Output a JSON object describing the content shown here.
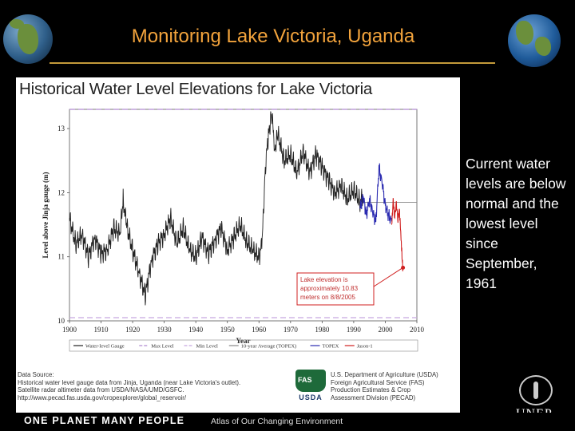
{
  "slide": {
    "title": "Monitoring Lake Victoria, Uganda",
    "side_text": "Current water levels are below normal and the lowest level since September, 1961"
  },
  "chart": {
    "title": "Historical Water Level Elevations for Lake Victoria",
    "annotation": [
      "Lake elevation is",
      "approximately 10.83",
      "meters on 8/8/2005"
    ],
    "source": {
      "heading": "Data Source:",
      "lines": [
        "Historical water level gauge data from Jinja, Uganda (near Lake Victoria's outlet).",
        "Satellite radar altimeter data from USDA/NASA/UMD/GSFC.",
        "http://www.pecad.fas.usda.gov/cropexplorer/global_reservoir/"
      ]
    },
    "agency": {
      "logo_text": "FAS",
      "logo_word": "USDA",
      "lines": [
        "U.S. Department of Agriculture (USDA)",
        "Foreign Agricultural Service (FAS)",
        "Production Estimates & Crop",
        "Assessment Division (PECAD)"
      ]
    }
  },
  "chart_data": {
    "type": "line",
    "title": "Historical Water Level Elevations for Lake Victoria",
    "xlabel": "Year",
    "ylabel": "Level above Jinja gauge (m)",
    "xlim": [
      1900,
      2010
    ],
    "ylim": [
      10,
      13.3
    ],
    "x_ticks": [
      1900,
      1910,
      1920,
      1930,
      1940,
      1950,
      1960,
      1970,
      1980,
      1990,
      2000,
      2010
    ],
    "y_ticks": [
      10,
      11,
      12,
      13
    ],
    "reference_lines": [
      {
        "name": "Max Level",
        "y": 13.3,
        "color": "#b08ad0",
        "dash": true
      },
      {
        "name": "Min Level",
        "y": 10.05,
        "color": "#c8a8e0",
        "dash": true
      },
      {
        "name": "10-year Average (TOPEX)",
        "y": 11.85,
        "color": "#888888",
        "dash": false
      }
    ],
    "series": [
      {
        "name": "Water-level Gauge",
        "color": "#222222",
        "x": [
          1900,
          1902,
          1904,
          1906,
          1908,
          1910,
          1912,
          1914,
          1916,
          1917,
          1918,
          1920,
          1922,
          1924,
          1926,
          1928,
          1930,
          1932,
          1934,
          1936,
          1938,
          1940,
          1942,
          1944,
          1946,
          1948,
          1950,
          1952,
          1954,
          1956,
          1958,
          1960,
          1961,
          1962,
          1963,
          1964,
          1965,
          1966,
          1968,
          1970,
          1972,
          1974,
          1976,
          1978,
          1980,
          1982,
          1984,
          1986,
          1988,
          1990,
          1992,
          1993
        ],
        "values": [
          11.6,
          11.2,
          11.35,
          11.0,
          11.3,
          11.05,
          11.1,
          11.45,
          11.35,
          11.9,
          11.5,
          11.1,
          10.75,
          10.4,
          10.95,
          11.2,
          11.35,
          11.6,
          11.2,
          11.45,
          11.1,
          11.0,
          11.3,
          11.05,
          11.25,
          11.45,
          11.1,
          11.3,
          11.5,
          11.25,
          11.1,
          11.0,
          11.2,
          12.4,
          12.9,
          13.25,
          12.7,
          12.9,
          12.5,
          12.6,
          12.3,
          12.65,
          12.3,
          12.6,
          12.4,
          12.2,
          12.0,
          12.1,
          11.9,
          12.05,
          11.85,
          11.95
        ]
      },
      {
        "name": "TOPEX",
        "color": "#2a2ab0",
        "x": [
          1992,
          1993,
          1994,
          1995,
          1996,
          1997,
          1998,
          1999,
          2000,
          2001,
          2002
        ],
        "values": [
          11.75,
          11.95,
          11.65,
          11.9,
          11.7,
          11.55,
          12.4,
          12.15,
          11.8,
          11.65,
          11.55
        ]
      },
      {
        "name": "Jason-1",
        "color": "#d02020",
        "x": [
          2002,
          2002.5,
          2003,
          2003.5,
          2004,
          2004.5,
          2005,
          2005.3,
          2005.6
        ],
        "values": [
          11.5,
          11.85,
          11.6,
          11.75,
          11.55,
          11.7,
          11.3,
          11.05,
          10.83
        ]
      }
    ],
    "legend": [
      "Water-level Gauge",
      "Max Level",
      "Min Level",
      "10-year Average (TOPEX)",
      "TOPEX",
      "Jason-1"
    ],
    "legend_colors": [
      "#222222",
      "#b08ad0",
      "#c8a8e0",
      "#888888",
      "#2a2ab0",
      "#d02020"
    ]
  },
  "footer": {
    "brand": "ONE PLANET MANY PEOPLE",
    "subtitle": "Atlas of Our Changing Environment",
    "logo": "UNEP"
  }
}
